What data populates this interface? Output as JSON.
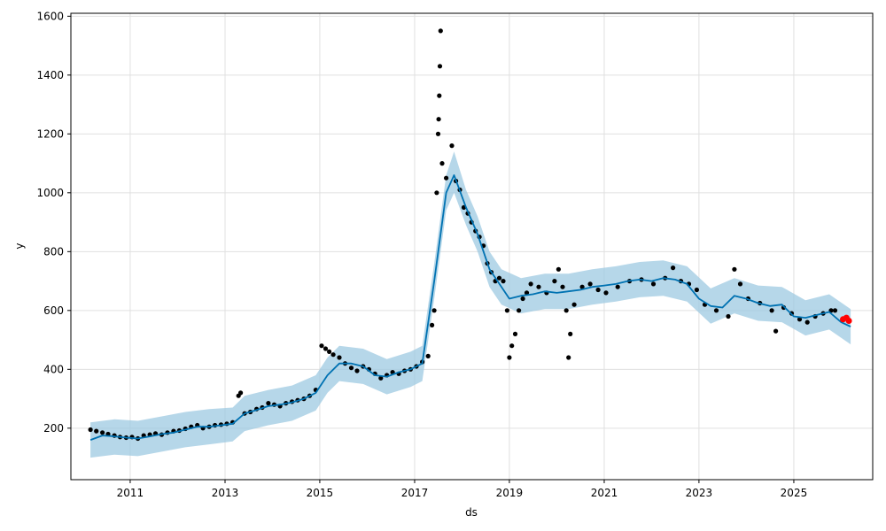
{
  "chart_data": {
    "type": "line",
    "title": "",
    "xlabel": "ds",
    "ylabel": "y",
    "xlim": [
      "2009-10-01",
      "2026-09-01"
    ],
    "ylim": [
      25,
      1610
    ],
    "grid": true,
    "x_ticks": [
      "2011",
      "2013",
      "2015",
      "2017",
      "2019",
      "2021",
      "2023",
      "2025"
    ],
    "y_ticks": [
      "200",
      "400",
      "600",
      "800",
      "1000",
      "1200",
      "1400",
      "1600"
    ],
    "colors": {
      "forecast": "#0072B2",
      "interval": "#9ecae1",
      "observed": "#000000",
      "highlight": "#ff0000",
      "grid": "#e0e0e0"
    },
    "series": [
      {
        "type": "line",
        "points": [
          [
            "2010-03-01",
            160
          ],
          [
            "2010-06-01",
            175
          ],
          [
            "2010-09-01",
            172
          ],
          [
            "2010-12-01",
            168
          ],
          [
            "2011-03-01",
            165
          ],
          [
            "2011-06-01",
            172
          ],
          [
            "2011-09-01",
            180
          ],
          [
            "2011-12-01",
            185
          ],
          [
            "2012-03-01",
            195
          ],
          [
            "2012-06-01",
            205
          ],
          [
            "2012-09-01",
            205
          ],
          [
            "2012-12-01",
            210
          ],
          [
            "2013-03-01",
            215
          ],
          [
            "2013-06-01",
            250
          ],
          [
            "2013-09-01",
            262
          ],
          [
            "2013-12-01",
            275
          ],
          [
            "2014-03-01",
            280
          ],
          [
            "2014-06-01",
            288
          ],
          [
            "2014-09-01",
            300
          ],
          [
            "2014-12-01",
            320
          ],
          [
            "2015-03-01",
            380
          ],
          [
            "2015-06-01",
            420
          ],
          [
            "2015-09-01",
            420
          ],
          [
            "2015-12-01",
            410
          ],
          [
            "2016-03-01",
            380
          ],
          [
            "2016-06-01",
            375
          ],
          [
            "2016-09-01",
            390
          ],
          [
            "2016-12-01",
            400
          ],
          [
            "2017-03-01",
            420
          ],
          [
            "2017-06-01",
            700
          ],
          [
            "2017-09-01",
            1000
          ],
          [
            "2017-11-01",
            1060
          ],
          [
            "2018-02-01",
            950
          ],
          [
            "2018-05-01",
            860
          ],
          [
            "2018-08-01",
            740
          ],
          [
            "2018-11-01",
            680
          ],
          [
            "2019-01-01",
            640
          ],
          [
            "2019-04-01",
            650
          ],
          [
            "2019-07-01",
            655
          ],
          [
            "2019-10-01",
            665
          ],
          [
            "2020-01-01",
            660
          ],
          [
            "2020-04-01",
            665
          ],
          [
            "2020-07-01",
            670
          ],
          [
            "2020-10-01",
            680
          ],
          [
            "2021-01-01",
            685
          ],
          [
            "2021-04-01",
            690
          ],
          [
            "2021-07-01",
            700
          ],
          [
            "2021-10-01",
            705
          ],
          [
            "2022-01-01",
            700
          ],
          [
            "2022-04-01",
            710
          ],
          [
            "2022-07-01",
            705
          ],
          [
            "2022-10-01",
            690
          ],
          [
            "2023-01-01",
            640
          ],
          [
            "2023-04-01",
            615
          ],
          [
            "2023-07-01",
            610
          ],
          [
            "2023-10-01",
            650
          ],
          [
            "2024-01-01",
            640
          ],
          [
            "2024-04-01",
            625
          ],
          [
            "2024-07-01",
            615
          ],
          [
            "2024-10-01",
            620
          ],
          [
            "2025-01-01",
            580
          ],
          [
            "2025-04-01",
            575
          ],
          [
            "2025-07-01",
            585
          ],
          [
            "2025-10-01",
            595
          ],
          [
            "2026-01-01",
            560
          ],
          [
            "2026-03-15",
            545
          ]
        ]
      },
      {
        "type": "band",
        "upper": [
          [
            "2010-03-01",
            220
          ],
          [
            "2010-09-01",
            230
          ],
          [
            "2011-03-01",
            225
          ],
          [
            "2011-09-01",
            240
          ],
          [
            "2012-03-01",
            255
          ],
          [
            "2012-09-01",
            265
          ],
          [
            "2013-03-01",
            270
          ],
          [
            "2013-06-01",
            310
          ],
          [
            "2013-12-01",
            330
          ],
          [
            "2014-06-01",
            345
          ],
          [
            "2014-12-01",
            380
          ],
          [
            "2015-03-01",
            440
          ],
          [
            "2015-06-01",
            480
          ],
          [
            "2015-12-01",
            470
          ],
          [
            "2016-06-01",
            435
          ],
          [
            "2016-12-01",
            460
          ],
          [
            "2017-03-01",
            480
          ],
          [
            "2017-06-01",
            760
          ],
          [
            "2017-09-01",
            1060
          ],
          [
            "2017-11-01",
            1140
          ],
          [
            "2018-02-01",
            1010
          ],
          [
            "2018-05-01",
            920
          ],
          [
            "2018-08-01",
            800
          ],
          [
            "2018-11-01",
            740
          ],
          [
            "2019-04-01",
            710
          ],
          [
            "2019-10-01",
            725
          ],
          [
            "2020-04-01",
            725
          ],
          [
            "2020-10-01",
            740
          ],
          [
            "2021-04-01",
            750
          ],
          [
            "2021-10-01",
            765
          ],
          [
            "2022-04-01",
            770
          ],
          [
            "2022-10-01",
            750
          ],
          [
            "2023-04-01",
            675
          ],
          [
            "2023-10-01",
            710
          ],
          [
            "2024-04-01",
            685
          ],
          [
            "2024-10-01",
            680
          ],
          [
            "2025-04-01",
            635
          ],
          [
            "2025-10-01",
            655
          ],
          [
            "2026-03-15",
            605
          ]
        ],
        "lower": [
          [
            "2010-03-01",
            100
          ],
          [
            "2010-09-01",
            110
          ],
          [
            "2011-03-01",
            105
          ],
          [
            "2011-09-01",
            120
          ],
          [
            "2012-03-01",
            135
          ],
          [
            "2012-09-01",
            145
          ],
          [
            "2013-03-01",
            155
          ],
          [
            "2013-06-01",
            190
          ],
          [
            "2013-12-01",
            210
          ],
          [
            "2014-06-01",
            225
          ],
          [
            "2014-12-01",
            260
          ],
          [
            "2015-03-01",
            320
          ],
          [
            "2015-06-01",
            360
          ],
          [
            "2015-12-01",
            350
          ],
          [
            "2016-06-01",
            315
          ],
          [
            "2016-12-01",
            340
          ],
          [
            "2017-03-01",
            360
          ],
          [
            "2017-06-01",
            640
          ],
          [
            "2017-09-01",
            940
          ],
          [
            "2017-11-01",
            1000
          ],
          [
            "2018-02-01",
            890
          ],
          [
            "2018-05-01",
            800
          ],
          [
            "2018-08-01",
            680
          ],
          [
            "2018-11-01",
            620
          ],
          [
            "2019-04-01",
            590
          ],
          [
            "2019-10-01",
            605
          ],
          [
            "2020-04-01",
            605
          ],
          [
            "2020-10-01",
            620
          ],
          [
            "2021-04-01",
            630
          ],
          [
            "2021-10-01",
            645
          ],
          [
            "2022-04-01",
            650
          ],
          [
            "2022-10-01",
            630
          ],
          [
            "2023-04-01",
            555
          ],
          [
            "2023-10-01",
            590
          ],
          [
            "2024-04-01",
            565
          ],
          [
            "2024-10-01",
            560
          ],
          [
            "2025-04-01",
            515
          ],
          [
            "2025-10-01",
            535
          ],
          [
            "2026-03-15",
            485
          ]
        ]
      },
      {
        "type": "scatter",
        "points": [
          [
            "2010-03-01",
            195
          ],
          [
            "2010-04-15",
            190
          ],
          [
            "2010-06-01",
            185
          ],
          [
            "2010-07-15",
            180
          ],
          [
            "2010-09-01",
            175
          ],
          [
            "2010-10-15",
            170
          ],
          [
            "2010-12-01",
            168
          ],
          [
            "2011-01-15",
            170
          ],
          [
            "2011-03-01",
            165
          ],
          [
            "2011-04-15",
            175
          ],
          [
            "2011-06-01",
            178
          ],
          [
            "2011-07-15",
            182
          ],
          [
            "2011-09-01",
            178
          ],
          [
            "2011-10-15",
            185
          ],
          [
            "2011-12-01",
            190
          ],
          [
            "2012-01-15",
            192
          ],
          [
            "2012-03-01",
            198
          ],
          [
            "2012-04-15",
            205
          ],
          [
            "2012-06-01",
            210
          ],
          [
            "2012-07-15",
            200
          ],
          [
            "2012-09-01",
            205
          ],
          [
            "2012-10-15",
            210
          ],
          [
            "2012-12-01",
            212
          ],
          [
            "2013-01-15",
            215
          ],
          [
            "2013-03-01",
            220
          ],
          [
            "2013-04-15",
            310
          ],
          [
            "2013-05-01",
            320
          ],
          [
            "2013-06-01",
            250
          ],
          [
            "2013-07-15",
            255
          ],
          [
            "2013-09-01",
            265
          ],
          [
            "2013-10-15",
            270
          ],
          [
            "2013-12-01",
            285
          ],
          [
            "2014-01-15",
            280
          ],
          [
            "2014-03-01",
            275
          ],
          [
            "2014-04-15",
            285
          ],
          [
            "2014-06-01",
            290
          ],
          [
            "2014-07-15",
            295
          ],
          [
            "2014-09-01",
            300
          ],
          [
            "2014-10-15",
            310
          ],
          [
            "2014-12-01",
            330
          ],
          [
            "2015-01-15",
            480
          ],
          [
            "2015-02-15",
            470
          ],
          [
            "2015-03-15",
            460
          ],
          [
            "2015-04-15",
            450
          ],
          [
            "2015-06-01",
            440
          ],
          [
            "2015-07-15",
            420
          ],
          [
            "2015-09-01",
            405
          ],
          [
            "2015-10-15",
            395
          ],
          [
            "2015-12-01",
            410
          ],
          [
            "2016-01-15",
            400
          ],
          [
            "2016-03-01",
            385
          ],
          [
            "2016-04-15",
            370
          ],
          [
            "2016-06-01",
            380
          ],
          [
            "2016-07-15",
            390
          ],
          [
            "2016-09-01",
            385
          ],
          [
            "2016-10-15",
            395
          ],
          [
            "2016-12-01",
            400
          ],
          [
            "2017-01-15",
            410
          ],
          [
            "2017-03-01",
            425
          ],
          [
            "2017-04-15",
            445
          ],
          [
            "2017-05-15",
            550
          ],
          [
            "2017-06-01",
            600
          ],
          [
            "2017-06-20",
            1000
          ],
          [
            "2017-07-01",
            1200
          ],
          [
            "2017-07-05",
            1250
          ],
          [
            "2017-07-10",
            1330
          ],
          [
            "2017-07-15",
            1430
          ],
          [
            "2017-07-20",
            1550
          ],
          [
            "2017-08-01",
            1100
          ],
          [
            "2017-09-01",
            1050
          ],
          [
            "2017-10-15",
            1160
          ],
          [
            "2017-11-15",
            1040
          ],
          [
            "2017-12-15",
            1010
          ],
          [
            "2018-01-15",
            950
          ],
          [
            "2018-02-15",
            930
          ],
          [
            "2018-03-15",
            900
          ],
          [
            "2018-04-15",
            870
          ],
          [
            "2018-05-15",
            850
          ],
          [
            "2018-06-15",
            820
          ],
          [
            "2018-07-15",
            760
          ],
          [
            "2018-08-15",
            730
          ],
          [
            "2018-09-15",
            700
          ],
          [
            "2018-10-15",
            710
          ],
          [
            "2018-11-15",
            700
          ],
          [
            "2018-12-15",
            600
          ],
          [
            "2019-01-01",
            440
          ],
          [
            "2019-01-20",
            480
          ],
          [
            "2019-02-15",
            520
          ],
          [
            "2019-03-15",
            600
          ],
          [
            "2019-04-15",
            640
          ],
          [
            "2019-05-15",
            660
          ],
          [
            "2019-06-15",
            690
          ],
          [
            "2019-08-15",
            680
          ],
          [
            "2019-10-15",
            660
          ],
          [
            "2019-12-15",
            700
          ],
          [
            "2020-01-15",
            740
          ],
          [
            "2020-02-15",
            680
          ],
          [
            "2020-03-15",
            600
          ],
          [
            "2020-04-01",
            440
          ],
          [
            "2020-04-15",
            520
          ],
          [
            "2020-05-15",
            620
          ],
          [
            "2020-07-15",
            680
          ],
          [
            "2020-09-15",
            690
          ],
          [
            "2020-11-15",
            670
          ],
          [
            "2021-01-15",
            660
          ],
          [
            "2021-04-15",
            680
          ],
          [
            "2021-07-15",
            700
          ],
          [
            "2021-10-15",
            705
          ],
          [
            "2022-01-15",
            690
          ],
          [
            "2022-04-15",
            710
          ],
          [
            "2022-06-15",
            745
          ],
          [
            "2022-08-15",
            700
          ],
          [
            "2022-10-15",
            690
          ],
          [
            "2022-12-15",
            670
          ],
          [
            "2023-02-15",
            620
          ],
          [
            "2023-05-15",
            600
          ],
          [
            "2023-08-15",
            580
          ],
          [
            "2023-10-01",
            740
          ],
          [
            "2023-11-15",
            690
          ],
          [
            "2024-01-15",
            640
          ],
          [
            "2024-04-15",
            625
          ],
          [
            "2024-07-15",
            600
          ],
          [
            "2024-08-15",
            530
          ],
          [
            "2024-10-15",
            610
          ],
          [
            "2024-12-15",
            590
          ],
          [
            "2025-02-15",
            570
          ],
          [
            "2025-04-15",
            560
          ],
          [
            "2025-06-15",
            580
          ],
          [
            "2025-08-15",
            590
          ],
          [
            "2025-10-15",
            600
          ],
          [
            "2025-11-15",
            600
          ]
        ]
      },
      {
        "type": "highlight",
        "points": [
          [
            "2026-01-15",
            570
          ],
          [
            "2026-02-10",
            575
          ],
          [
            "2026-03-01",
            565
          ]
        ]
      }
    ]
  }
}
